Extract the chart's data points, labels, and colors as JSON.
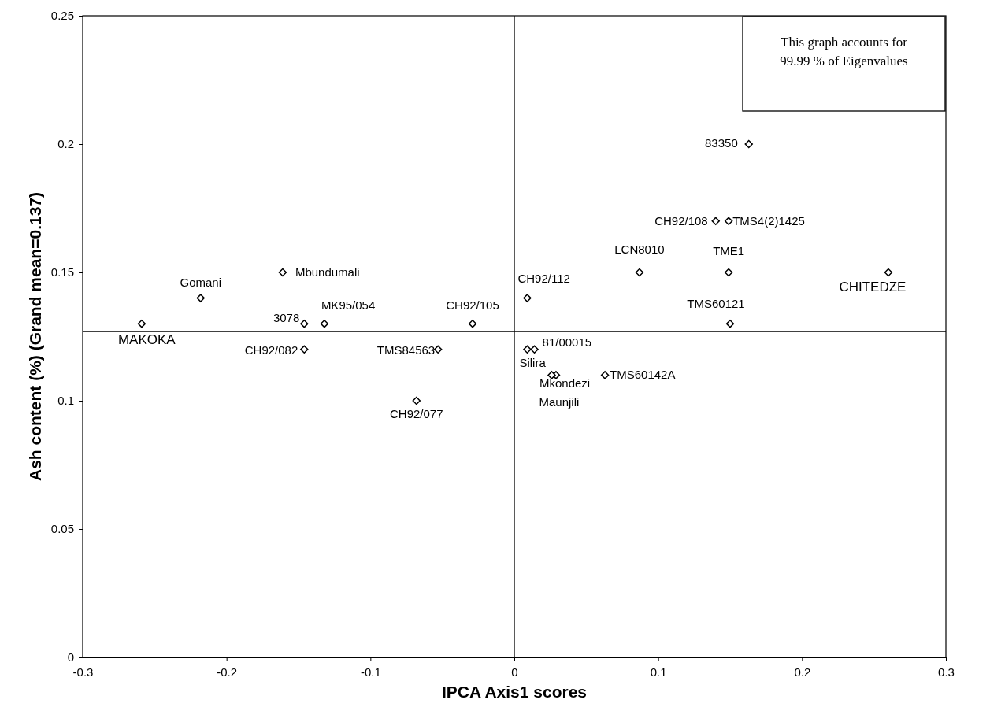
{
  "chart_data": {
    "type": "scatter",
    "xlabel": "IPCA Axis1 scores",
    "ylabel": "Ash content (%) (Grand mean=0.137)",
    "xlim": [
      -0.3,
      0.3
    ],
    "xticks": [
      -0.3,
      -0.2,
      -0.1,
      0,
      0.1,
      0.2,
      0.3
    ],
    "ylim": [
      0,
      0.25
    ],
    "yticks": [
      0,
      0.05,
      0.1,
      0.15,
      0.2,
      0.25
    ],
    "grid": false,
    "marker": "diamond",
    "annotations": [
      "This graph accounts for 99.99 % of Eigenvalues"
    ],
    "ref_lines": [
      {
        "axis": "x",
        "value": 0
      },
      {
        "axis": "y",
        "value": 0.127
      }
    ],
    "series": [
      {
        "name": "MAKOKA",
        "color": "#000000",
        "x": [
          -0.259
        ],
        "values": [
          0.13
        ]
      },
      {
        "name": "Gomani",
        "color": "#000000",
        "x": [
          -0.218
        ],
        "values": [
          0.14
        ]
      },
      {
        "name": "Mbundumali",
        "color": "#000000",
        "x": [
          -0.161
        ],
        "values": [
          0.15
        ]
      },
      {
        "name": "3078",
        "color": "#000000",
        "x": [
          -0.146
        ],
        "values": [
          0.13
        ]
      },
      {
        "name": "MK95/054",
        "color": "#000000",
        "x": [
          -0.132
        ],
        "values": [
          0.13
        ]
      },
      {
        "name": "CH92/105",
        "color": "#000000",
        "x": [
          -0.029
        ],
        "values": [
          0.13
        ]
      },
      {
        "name": "CH92/082",
        "color": "#000000",
        "x": [
          -0.146
        ],
        "values": [
          0.12
        ]
      },
      {
        "name": "TMS84563",
        "color": "#000000",
        "x": [
          -0.053
        ],
        "values": [
          0.12
        ]
      },
      {
        "name": "CH92/077",
        "color": "#000000",
        "x": [
          -0.068
        ],
        "values": [
          0.1
        ]
      },
      {
        "name": "83350",
        "color": "#000000",
        "x": [
          0.163
        ],
        "values": [
          0.2
        ]
      },
      {
        "name": "CH92/108",
        "color": "#000000",
        "x": [
          0.14
        ],
        "values": [
          0.17
        ]
      },
      {
        "name": "TMS4(2)1425",
        "color": "#000000",
        "x": [
          0.149
        ],
        "values": [
          0.17
        ]
      },
      {
        "name": "LCN8010",
        "color": "#000000",
        "x": [
          0.087
        ],
        "values": [
          0.15
        ]
      },
      {
        "name": "TME1",
        "color": "#000000",
        "x": [
          0.149
        ],
        "values": [
          0.15
        ]
      },
      {
        "name": "CHITEDZE",
        "color": "#000000",
        "x": [
          0.26
        ],
        "values": [
          0.15
        ]
      },
      {
        "name": "CH92/112",
        "color": "#000000",
        "x": [
          0.009
        ],
        "values": [
          0.14
        ]
      },
      {
        "name": "TMS60121",
        "color": "#000000",
        "x": [
          0.15
        ],
        "values": [
          0.13
        ]
      },
      {
        "name": "Silira",
        "color": "#000000",
        "x": [
          0.009
        ],
        "values": [
          0.12
        ]
      },
      {
        "name": "81/00015",
        "color": "#000000",
        "x": [
          0.014
        ],
        "values": [
          0.12
        ]
      },
      {
        "name": "Mkondezi",
        "color": "#000000",
        "x": [
          0.029
        ],
        "values": [
          0.11
        ]
      },
      {
        "name": "TMS60142A",
        "color": "#000000",
        "x": [
          0.063
        ],
        "values": [
          0.11
        ]
      },
      {
        "name": "Maunjili",
        "color": "#000000",
        "x": [
          0.026
        ],
        "values": [
          0.11
        ]
      }
    ]
  }
}
